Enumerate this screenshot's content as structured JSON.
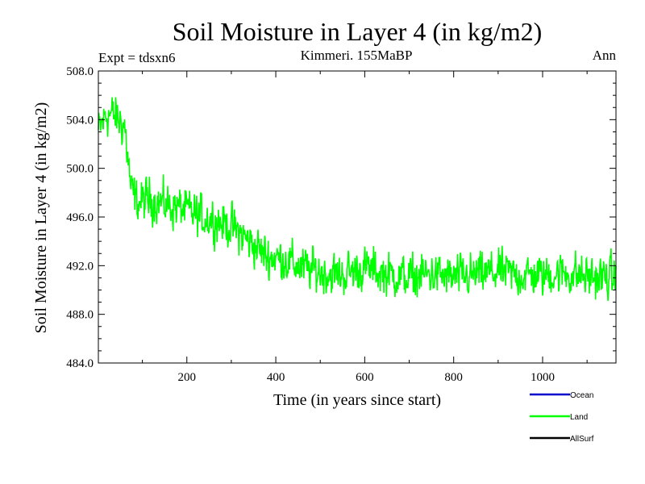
{
  "chart_data": {
    "type": "line",
    "title": "Soil Moisture in Layer 4 (in kg/m2)",
    "subtitle_left": "Expt = tdsxn6",
    "subtitle_center": "Kimmeri. 155MaBP",
    "subtitle_right": "Ann",
    "xlabel": "Time (in years since start)",
    "ylabel": "Soil Moisture in Layer 4 (in kg/m2)",
    "xlim": [
      1,
      1165
    ],
    "ylim": [
      484.0,
      508.0
    ],
    "xticks": [
      200,
      400,
      600,
      800,
      1000
    ],
    "xtick_labels": [
      "200",
      "400",
      "600",
      "800",
      "1000"
    ],
    "yticks": [
      484.0,
      488.0,
      492.0,
      496.0,
      500.0,
      504.0,
      508.0
    ],
    "ytick_labels": [
      "484.0",
      "488.0",
      "492.0",
      "496.0",
      "500.0",
      "504.0",
      "508.0"
    ],
    "legend": [
      {
        "name": "Ocean",
        "color": "#0000cc"
      },
      {
        "name": "Land",
        "color": "#00ff00"
      },
      {
        "name": "AllSurf",
        "color": "#000000"
      }
    ],
    "series": [
      {
        "name": "Land",
        "color": "#00ff00",
        "x": [
          1,
          20,
          40,
          60,
          75,
          90,
          120,
          150,
          180,
          200,
          230,
          260,
          300,
          340,
          380,
          420,
          460,
          500,
          540,
          600,
          650,
          700,
          750,
          800,
          850,
          900,
          950,
          1000,
          1050,
          1100,
          1165
        ],
        "y": [
          503.0,
          504.5,
          504.2,
          503.5,
          498.0,
          497.2,
          497.5,
          497.0,
          496.8,
          496.5,
          496.0,
          495.8,
          495.2,
          494.0,
          492.8,
          492.5,
          491.8,
          491.5,
          491.2,
          491.8,
          491.3,
          491.0,
          491.3,
          491.0,
          491.2,
          491.5,
          491.2,
          491.2,
          491.4,
          491.1,
          491.0
        ]
      }
    ]
  }
}
